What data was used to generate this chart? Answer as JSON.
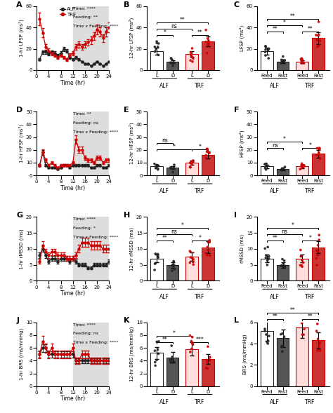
{
  "rows": [
    {
      "label": "A",
      "ylabel_line": "1-hr LFSP (ms²)",
      "ylim_line": [
        0,
        60
      ],
      "yticks_line": [
        0,
        20,
        40,
        60
      ],
      "stats_line": [
        "Time: ****",
        "Feeding: **",
        "Time x Feeding: ****"
      ],
      "ylabel_bar": "12-hr LFSP (ms²)",
      "ylim_bar": [
        0,
        60
      ],
      "yticks_bar": [
        0,
        20,
        40,
        60
      ],
      "ylabel_bar2": "LFSP (ms²)",
      "ylim_bar2": [
        0,
        60
      ],
      "yticks_bar2": [
        0,
        20,
        40,
        60
      ],
      "bar_label": "B",
      "bar2_label": "C",
      "alf_line_mean": [
        10,
        17,
        17,
        15,
        17,
        16,
        14,
        16,
        20,
        18,
        12,
        10,
        12,
        10,
        8,
        6,
        6,
        4,
        6,
        8,
        6,
        4,
        6,
        8
      ],
      "trf_line_mean": [
        48,
        35,
        22,
        18,
        16,
        14,
        12,
        14,
        12,
        10,
        14,
        16,
        22,
        24,
        22,
        24,
        26,
        28,
        32,
        38,
        36,
        30,
        36,
        40
      ],
      "bar_vals": [
        18,
        8,
        15,
        27
      ],
      "bar2_vals": [
        18,
        8,
        8,
        30
      ],
      "bar_sigs": [
        [
          "*",
          0,
          1,
          0
        ],
        [
          "ns",
          0,
          2,
          1
        ],
        [
          "**",
          0,
          3,
          2
        ],
        [
          "**",
          2,
          3,
          0
        ]
      ],
      "bar2_sigs": [
        [
          "**",
          0,
          1,
          0
        ],
        [
          "*",
          0,
          2,
          1
        ],
        [
          "**",
          0,
          3,
          2
        ],
        [
          "**",
          2,
          3,
          0
        ]
      ]
    },
    {
      "label": "D",
      "ylabel_line": "1-hr HFSP (ms²)",
      "ylim_line": [
        0,
        50
      ],
      "yticks_line": [
        0,
        10,
        20,
        30,
        40,
        50
      ],
      "stats_line": [
        "Time: **",
        "Feeding: ns",
        "Time x Feeding: ****"
      ],
      "ylabel_bar": "12-hr HFSP (ms²)",
      "ylim_bar": [
        0,
        50
      ],
      "yticks_bar": [
        0,
        10,
        20,
        30,
        40,
        50
      ],
      "ylabel_bar2": "HFSP (ms²)",
      "ylim_bar2": [
        0,
        50
      ],
      "yticks_bar2": [
        0,
        10,
        20,
        30,
        40,
        50
      ],
      "bar_label": "E",
      "bar2_label": "F",
      "alf_line_mean": [
        8,
        18,
        8,
        6,
        6,
        6,
        5,
        6,
        8,
        8,
        6,
        8,
        8,
        8,
        8,
        8,
        8,
        6,
        6,
        8,
        8,
        6,
        6,
        8
      ],
      "trf_line_mean": [
        8,
        18,
        12,
        8,
        10,
        8,
        6,
        8,
        8,
        8,
        8,
        10,
        28,
        20,
        20,
        14,
        12,
        12,
        10,
        14,
        14,
        10,
        12,
        12
      ],
      "bar_vals": [
        7,
        6,
        10,
        16
      ],
      "bar2_vals": [
        7,
        5,
        7,
        17
      ],
      "bar_sigs": [
        [
          "*",
          0,
          2,
          0
        ],
        [
          "ns",
          0,
          1,
          1
        ],
        [
          "*",
          2,
          3,
          0
        ]
      ],
      "bar2_sigs": [
        [
          "ns",
          0,
          1,
          0
        ],
        [
          "*",
          0,
          2,
          1
        ],
        [
          "*",
          2,
          3,
          0
        ]
      ]
    },
    {
      "label": "G",
      "ylabel_line": "1-hr rMSSD (ms)",
      "ylim_line": [
        0,
        20
      ],
      "yticks_line": [
        0,
        5,
        10,
        15,
        20
      ],
      "stats_line": [
        "Time: ****",
        "Feeding: *",
        "Time x Feeding: ****"
      ],
      "ylabel_bar": "12-hr rMSSD (ms)",
      "ylim_bar": [
        0,
        20
      ],
      "yticks_bar": [
        0,
        5,
        10,
        15,
        20
      ],
      "ylabel_bar2": "rMSSD (ms)",
      "ylim_bar2": [
        0,
        20
      ],
      "yticks_bar2": [
        0,
        5,
        10,
        15,
        20
      ],
      "bar_label": "H",
      "bar2_label": "I",
      "alf_line_mean": [
        8,
        10,
        8,
        6,
        7,
        7,
        6,
        7,
        7,
        7,
        6,
        7,
        6,
        5,
        5,
        5,
        4,
        4,
        5,
        5,
        5,
        5,
        5,
        6
      ],
      "trf_line_mean": [
        6,
        11,
        9,
        8,
        9,
        9,
        8,
        8,
        8,
        7,
        7,
        7,
        8,
        10,
        12,
        12,
        12,
        11,
        11,
        11,
        11,
        10,
        10,
        10
      ],
      "bar_vals": [
        7,
        5,
        7.5,
        10.5
      ],
      "bar2_vals": [
        7,
        5,
        7,
        10.5
      ],
      "bar_sigs": [
        [
          "**",
          0,
          1,
          0
        ],
        [
          "ns",
          0,
          2,
          1
        ],
        [
          "*",
          0,
          3,
          2
        ],
        [
          "*",
          2,
          3,
          0
        ]
      ],
      "bar2_sigs": [
        [
          "**",
          0,
          1,
          0
        ],
        [
          "ns",
          0,
          2,
          1
        ],
        [
          "*",
          0,
          3,
          2
        ],
        [
          "*",
          2,
          3,
          0
        ]
      ]
    },
    {
      "label": "J",
      "ylabel_line": "1-hr BRS (ms/mmHg)",
      "ylim_line": [
        0,
        10
      ],
      "yticks_line": [
        0,
        2,
        4,
        6,
        8,
        10
      ],
      "stats_line": [
        "Time: ****",
        "Feeding: ns",
        "Time x Feeding: ****"
      ],
      "ylabel_bar": "12-hr BRS (ms/mmHg)",
      "ylim_bar": [
        0,
        10
      ],
      "yticks_bar": [
        0,
        2,
        4,
        6,
        8,
        10
      ],
      "ylabel_bar2": "BRS (ms/mmHg)",
      "ylim_bar2": [
        0,
        6
      ],
      "yticks_bar2": [
        0,
        2,
        4,
        6
      ],
      "bar_label": "K",
      "bar2_label": "L",
      "alf_line_mean": [
        5,
        6,
        6,
        5,
        5,
        5,
        5,
        5,
        5,
        5,
        5,
        5,
        4,
        4,
        4,
        4,
        4,
        4,
        4,
        4,
        4,
        4,
        4,
        4
      ],
      "trf_line_mean": [
        5,
        7,
        6,
        5,
        6,
        5,
        5,
        5,
        5,
        5,
        5,
        6,
        4,
        4,
        5,
        5,
        5,
        4,
        4,
        4,
        4,
        4,
        4,
        4
      ],
      "bar_vals": [
        5.2,
        4.5,
        5.8,
        4.3
      ],
      "bar2_vals": [
        5.2,
        4.5,
        5.5,
        4.3
      ],
      "bar_sigs": [
        [
          "**",
          0,
          1,
          0
        ],
        [
          "*",
          0,
          2,
          1
        ],
        [
          "***",
          2,
          3,
          0
        ]
      ],
      "bar2_sigs": [
        [
          "**",
          0,
          1,
          0
        ],
        [
          "**",
          0,
          3,
          1
        ],
        [
          "**",
          2,
          3,
          0
        ]
      ]
    }
  ],
  "alf_color": "#222222",
  "trf_color": "#cc0000",
  "bar_colors": [
    "#ffffff",
    "#555555",
    "#ffdddd",
    "#cc3333"
  ],
  "bar_edges": [
    "#222222",
    "#222222",
    "#cc0000",
    "#cc0000"
  ],
  "dot_colors": [
    "#222222",
    "#222222",
    "#cc0000",
    "#cc0000"
  ],
  "dark_shade": "#dddddd"
}
